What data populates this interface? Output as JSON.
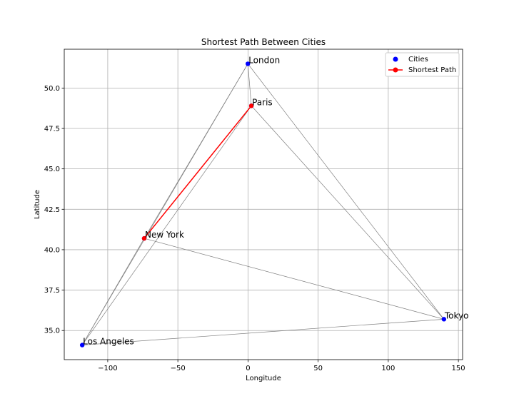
{
  "chart_data": {
    "type": "scatter",
    "title": "Shortest Path Between Cities",
    "xlabel": "Longitude",
    "ylabel": "Latitude",
    "xlim": [
      -131,
      153
    ],
    "ylim": [
      33.2,
      52.4
    ],
    "x_ticks": [
      -100,
      -50,
      0,
      50,
      100,
      150
    ],
    "x_tick_labels": [
      "−100",
      "−50",
      "0",
      "50",
      "100",
      "150"
    ],
    "y_ticks": [
      35.0,
      37.5,
      40.0,
      42.5,
      45.0,
      47.5,
      50.0
    ],
    "y_tick_labels": [
      "35.0",
      "37.5",
      "40.0",
      "42.5",
      "45.0",
      "47.5",
      "50.0"
    ],
    "grid": true,
    "legend_position": "top-right",
    "legend": [
      "Cities",
      "Shortest Path"
    ],
    "colors": {
      "cities": "#0000ff",
      "path": "#ff0000",
      "edges": "#808080",
      "grid": "#b0b0b0"
    },
    "cities": [
      {
        "name": "New York",
        "x": -74.0,
        "y": 40.7
      },
      {
        "name": "Los Angeles",
        "x": -118.2,
        "y": 34.1
      },
      {
        "name": "London",
        "x": -0.1,
        "y": 51.5
      },
      {
        "name": "Paris",
        "x": 2.4,
        "y": 48.9
      },
      {
        "name": "Tokyo",
        "x": 139.7,
        "y": 35.7
      }
    ],
    "edges": [
      [
        "New York",
        "Los Angeles"
      ],
      [
        "New York",
        "London"
      ],
      [
        "New York",
        "Tokyo"
      ],
      [
        "Los Angeles",
        "London"
      ],
      [
        "Los Angeles",
        "Paris"
      ],
      [
        "Los Angeles",
        "Tokyo"
      ],
      [
        "London",
        "Paris"
      ],
      [
        "London",
        "Tokyo"
      ],
      [
        "Paris",
        "Tokyo"
      ]
    ],
    "shortest_path": [
      "New York",
      "Paris"
    ]
  }
}
